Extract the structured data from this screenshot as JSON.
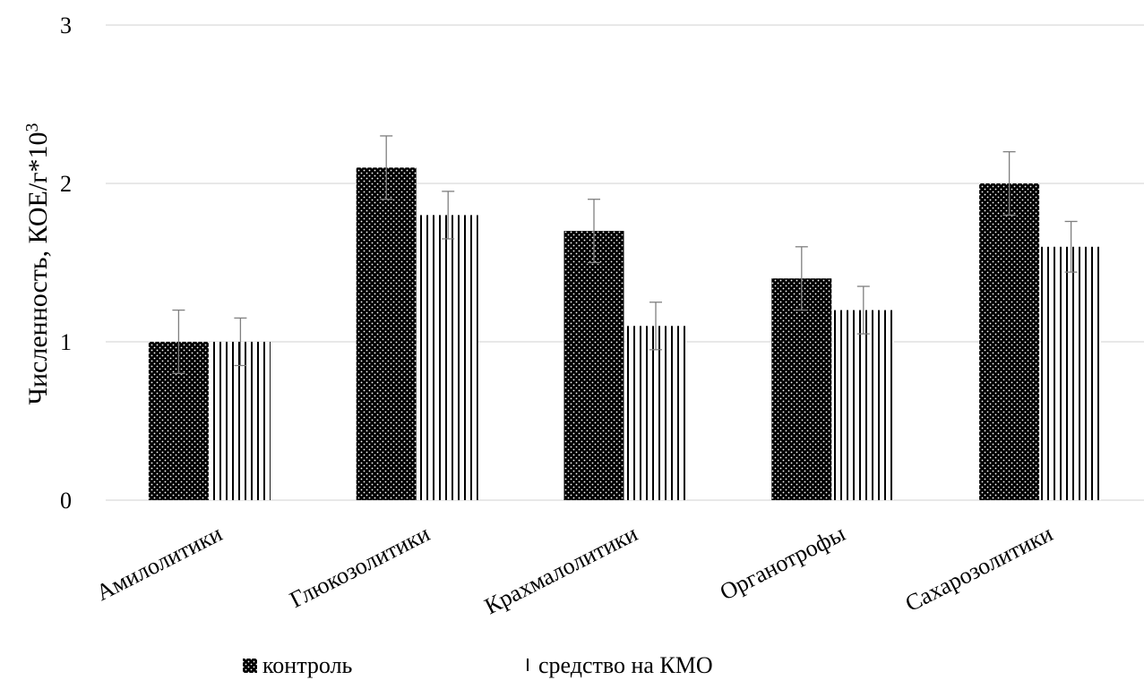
{
  "chart_data": {
    "type": "bar",
    "categories": [
      "Амилолитики",
      "Глюкозолитики",
      "Крахмалолитики",
      "Органотрофы",
      "Сахарозолитики"
    ],
    "series": [
      {
        "name": "контроль",
        "values": [
          1.0,
          2.1,
          1.7,
          1.4,
          2.0
        ],
        "errors": [
          0.2,
          0.2,
          0.2,
          0.2,
          0.2
        ],
        "pattern": "dots"
      },
      {
        "name": "средство на КМО",
        "values": [
          1.0,
          1.8,
          1.1,
          1.2,
          1.6
        ],
        "errors": [
          0.15,
          0.15,
          0.15,
          0.15,
          0.16
        ],
        "pattern": "vertical-lines"
      }
    ],
    "ylabel": "Численность, КОЕ/г*10",
    "ylabel_sup": "3",
    "xlabel": "",
    "ylim": [
      0,
      3
    ],
    "yticks": [
      "0",
      "1",
      "2",
      "3"
    ],
    "grid": true,
    "legend_position": "bottom"
  }
}
